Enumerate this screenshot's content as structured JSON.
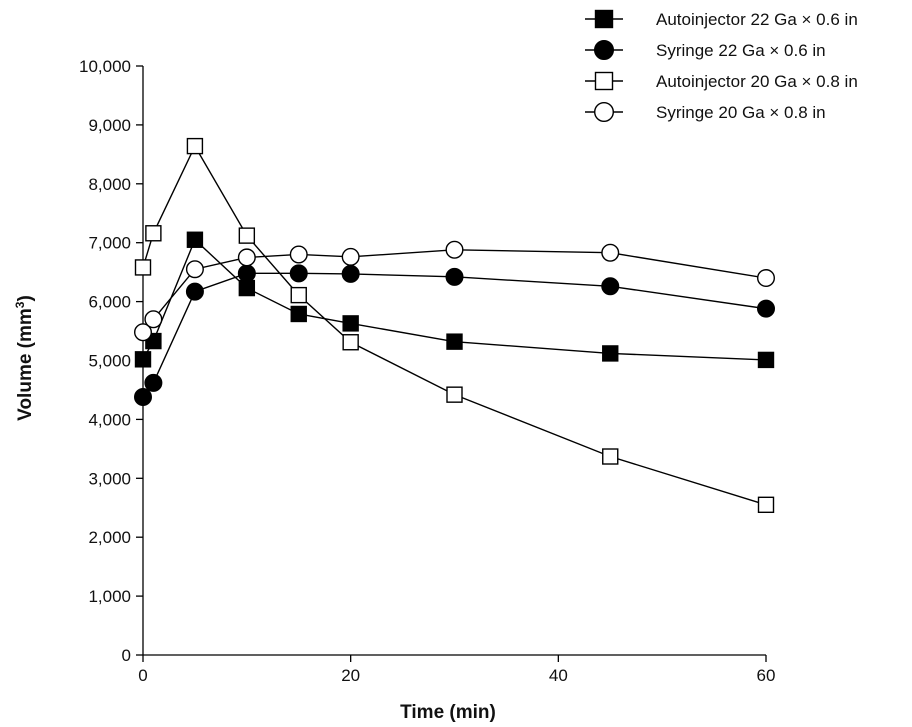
{
  "chart_data": {
    "type": "line",
    "title": "",
    "xlabel": "Time (min)",
    "ylabel_main": "Volume (mm",
    "ylabel_sup": "3",
    "ylabel_tail": ")",
    "xlim": [
      0,
      60
    ],
    "ylim": [
      0,
      10000
    ],
    "xticks": [
      0,
      20,
      40,
      60
    ],
    "xtick_labels": [
      "0",
      "20",
      "40",
      "60"
    ],
    "yticks": [
      0,
      1000,
      2000,
      3000,
      4000,
      5000,
      6000,
      7000,
      8000,
      9000,
      10000
    ],
    "ytick_labels": [
      "0",
      "1,000",
      "2,000",
      "3,000",
      "4,000",
      "5,000",
      "6,000",
      "7,000",
      "8,000",
      "9,000",
      "10,000"
    ],
    "grid": false,
    "legend_position": "top-right",
    "series": [
      {
        "name": "Autoinjector 22 Ga × 0.6 in",
        "marker": "square",
        "filled": true,
        "color": "#000000",
        "x": [
          0,
          1,
          5,
          10,
          15,
          20,
          30,
          45,
          60
        ],
        "y": [
          5020,
          5330,
          7050,
          6230,
          5790,
          5630,
          5320,
          5120,
          5010
        ]
      },
      {
        "name": "Syringe 22 Ga × 0.6 in",
        "marker": "circle",
        "filled": true,
        "color": "#000000",
        "x": [
          0,
          1,
          5,
          10,
          15,
          20,
          30,
          45,
          60
        ],
        "y": [
          4380,
          4620,
          6170,
          6480,
          6480,
          6470,
          6420,
          6260,
          5880
        ]
      },
      {
        "name": "Autoinjector 20 Ga × 0.8 in",
        "marker": "square",
        "filled": false,
        "color": "#000000",
        "x": [
          0,
          1,
          5,
          10,
          15,
          20,
          30,
          45,
          60
        ],
        "y": [
          6580,
          7160,
          8640,
          7120,
          6110,
          5310,
          4420,
          3370,
          2550
        ]
      },
      {
        "name": "Syringe 20 Ga × 0.8 in",
        "marker": "circle",
        "filled": false,
        "color": "#000000",
        "x": [
          0,
          1,
          5,
          10,
          15,
          20,
          30,
          45,
          60
        ],
        "y": [
          5480,
          5700,
          6550,
          6750,
          6800,
          6760,
          6880,
          6830,
          6400
        ]
      }
    ]
  }
}
